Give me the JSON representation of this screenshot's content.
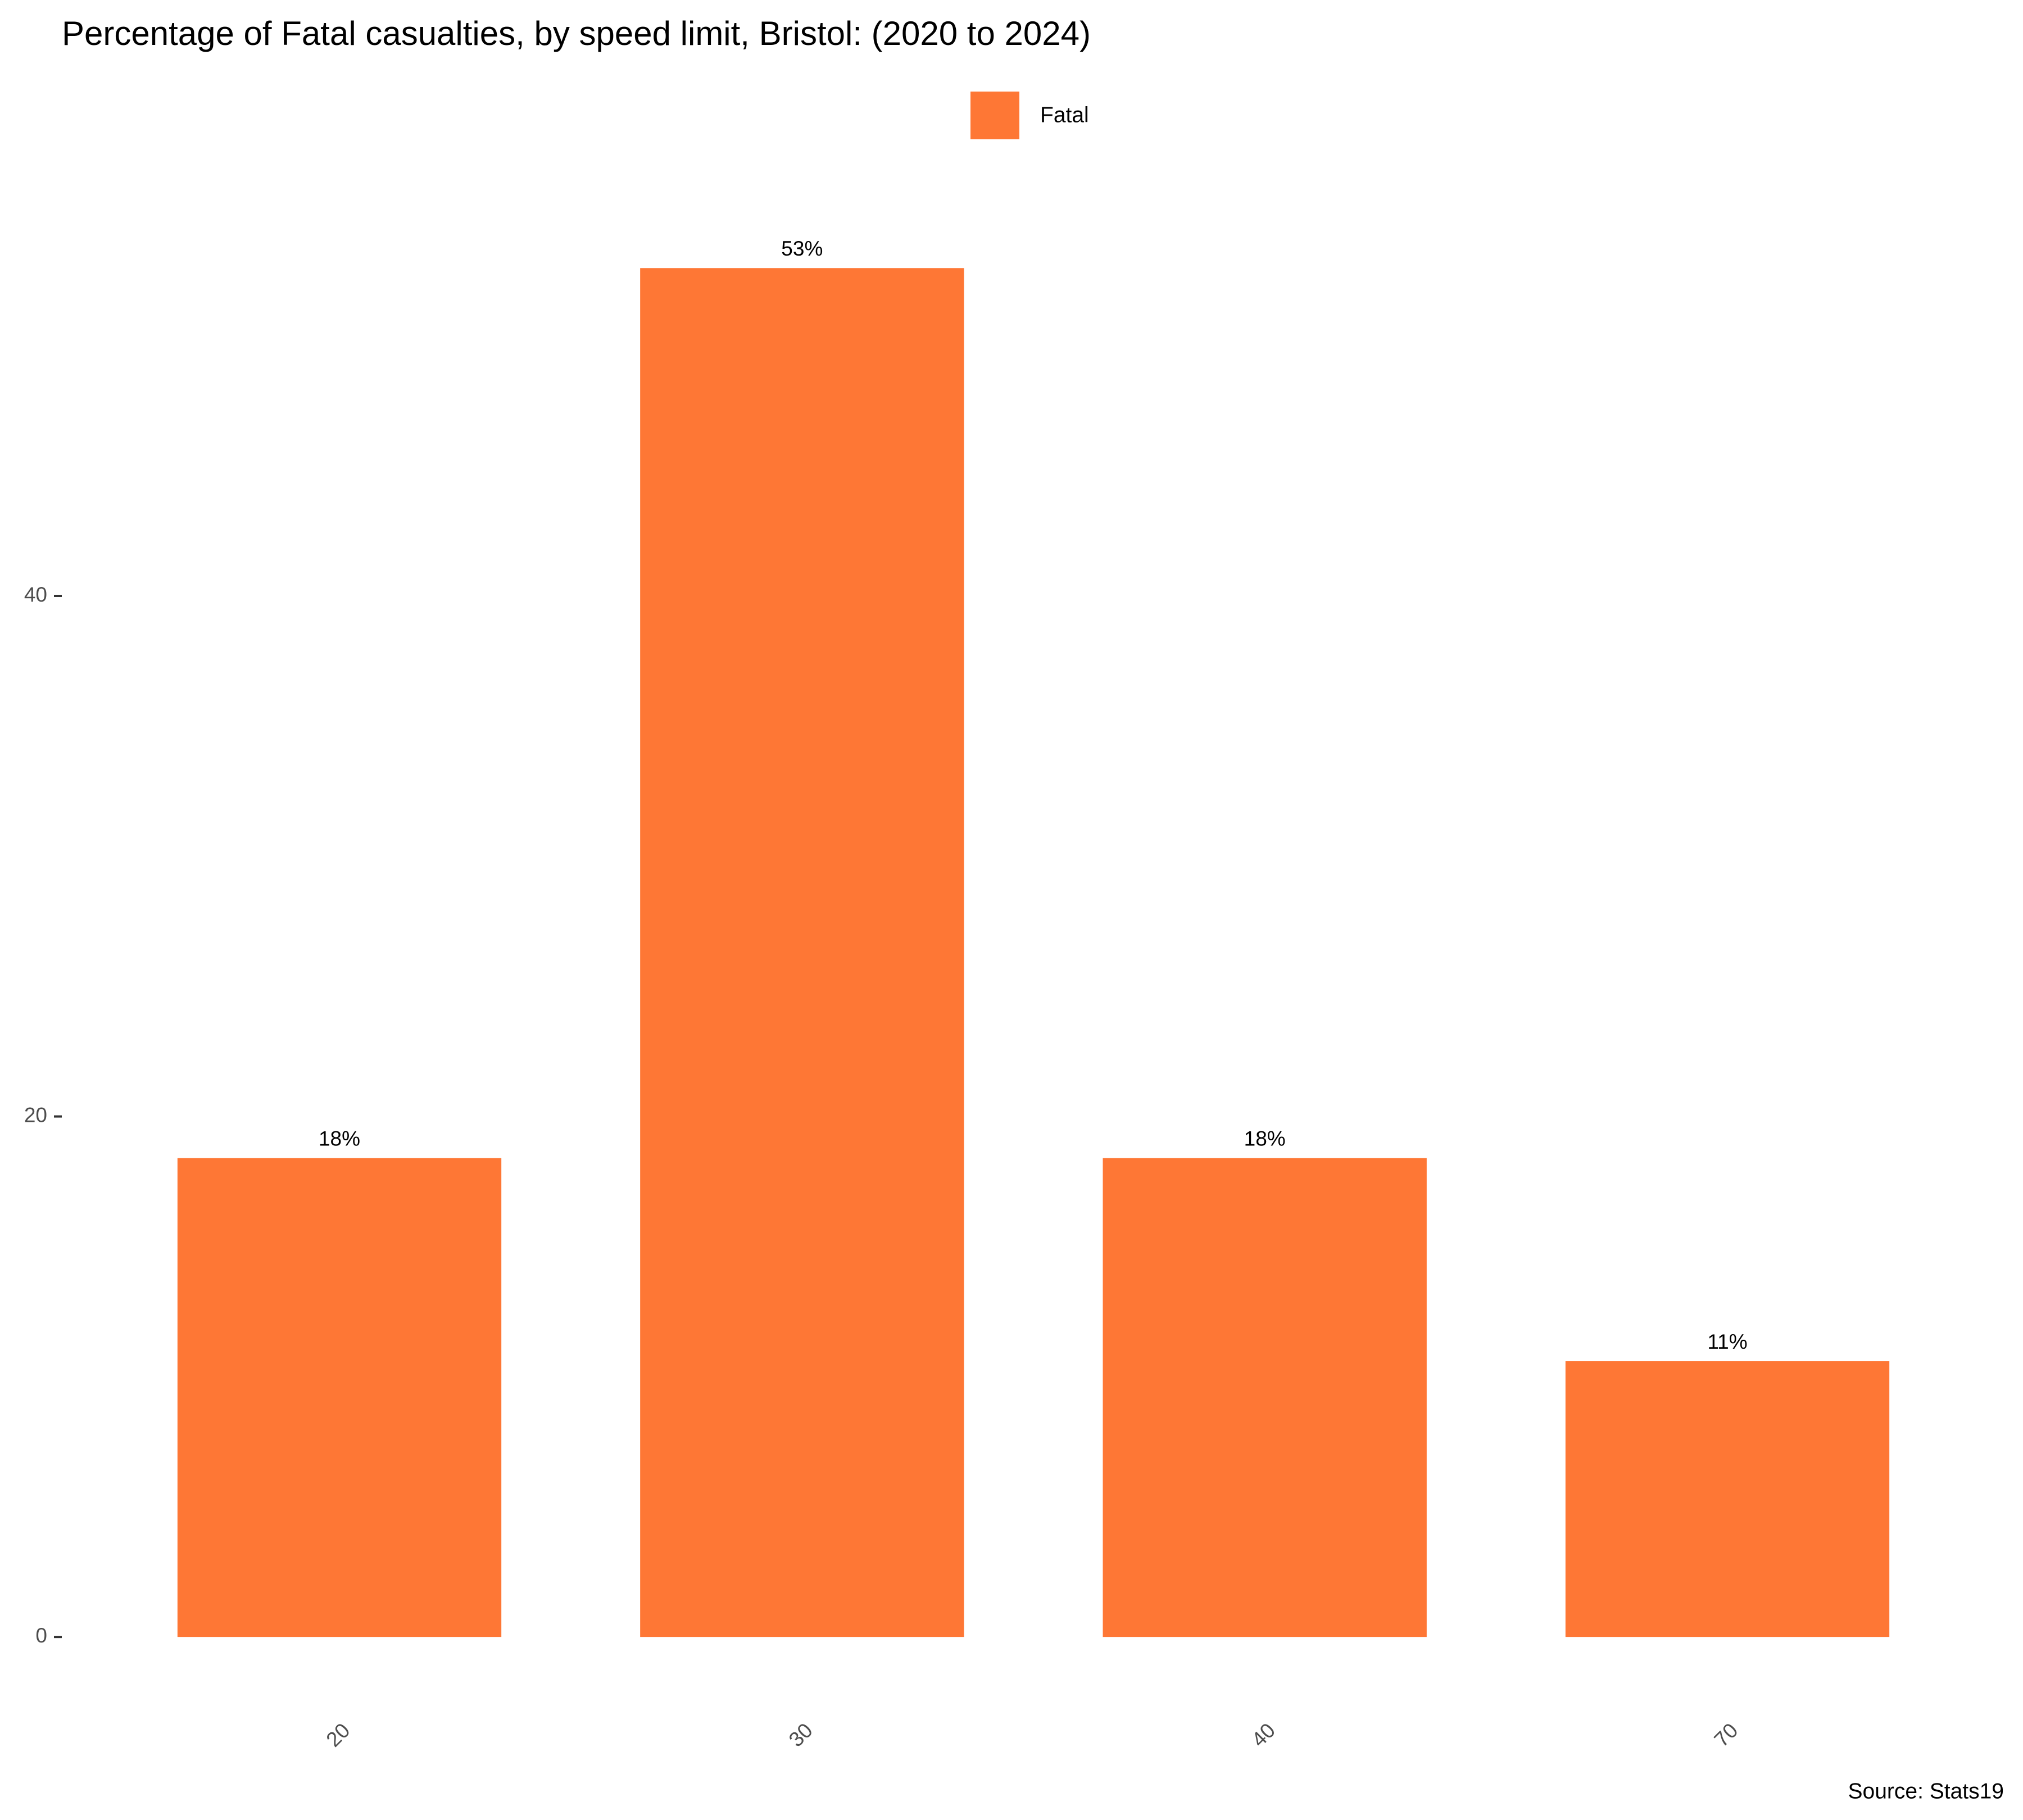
{
  "chart_data": {
    "type": "bar",
    "title": "Percentage of Fatal casualties, by speed limit, Bristol: (2020 to 2024)",
    "categories": [
      "20",
      "30",
      "40",
      "70"
    ],
    "series": [
      {
        "name": "Fatal",
        "color": "#fe7735",
        "values": [
          18.4,
          52.6,
          18.4,
          10.6
        ],
        "value_labels": [
          "18%",
          "53%",
          "18%",
          "11%"
        ]
      }
    ],
    "ylim": [
      -2.63,
      55.26
    ],
    "yticks": [
      0,
      20,
      40
    ],
    "grid": false,
    "legend": "top",
    "caption": "Source: Stats19"
  }
}
